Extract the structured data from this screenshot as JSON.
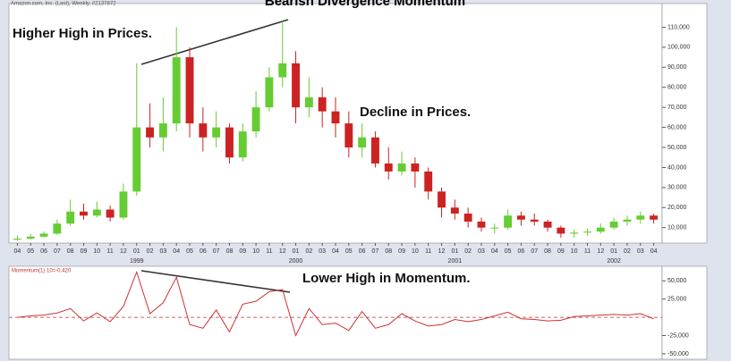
{
  "chart_data": [
    {
      "type": "candlestick",
      "title": "Bearish Divergence Momentum",
      "subtitle": "Amazon.com, Inc. (Last), Weekly, #2137872",
      "annotations": [
        "Higher High in Prices.",
        "Decline in Prices."
      ],
      "up_color": "#66cc33",
      "down_color": "#cc2222",
      "categories": [
        "04",
        "05",
        "06",
        "07",
        "08",
        "09",
        "10",
        "11",
        "12",
        "01",
        "02",
        "03",
        "04",
        "05",
        "06",
        "07",
        "08",
        "09",
        "10",
        "11",
        "12",
        "01",
        "02",
        "03",
        "04",
        "05",
        "06",
        "07",
        "08",
        "09",
        "10",
        "11",
        "12",
        "01",
        "02",
        "03",
        "04",
        "05",
        "06",
        "07",
        "08",
        "09",
        "10",
        "11",
        "12",
        "01",
        "02",
        "03",
        "04"
      ],
      "years": [
        "1999",
        "2000",
        "2001",
        "2002"
      ],
      "open": [
        4000,
        4500,
        5500,
        7000,
        12000,
        18000,
        16000,
        19000,
        15000,
        28000,
        60000,
        55000,
        62000,
        95000,
        62000,
        55000,
        60000,
        45000,
        58000,
        70000,
        85000,
        92000,
        70000,
        75000,
        68000,
        62000,
        50000,
        55000,
        42000,
        38000,
        42000,
        38000,
        28000,
        20000,
        17000,
        13000,
        10000,
        10000,
        16000,
        14000,
        13000,
        10000,
        7000,
        7500,
        8000,
        10000,
        13000,
        14000,
        16000
      ],
      "high": [
        6000,
        7000,
        8000,
        14000,
        24000,
        22000,
        23000,
        21000,
        32000,
        92000,
        72000,
        75000,
        110000,
        100000,
        70000,
        68000,
        62000,
        62000,
        78000,
        90000,
        113000,
        98000,
        85000,
        80000,
        75000,
        68000,
        62000,
        58000,
        50000,
        48000,
        45000,
        40000,
        30000,
        24000,
        20000,
        15000,
        12000,
        19000,
        18000,
        17000,
        14000,
        11000,
        9000,
        9500,
        12000,
        15000,
        16000,
        18000,
        17000
      ],
      "low": [
        3500,
        4000,
        5000,
        6500,
        11000,
        14000,
        15000,
        13000,
        14000,
        26000,
        50000,
        48000,
        58000,
        55000,
        48000,
        50000,
        42000,
        43000,
        55000,
        68000,
        80000,
        62000,
        65000,
        60000,
        55000,
        45000,
        45000,
        40000,
        34000,
        36000,
        30000,
        24000,
        15000,
        14000,
        10000,
        8000,
        7000,
        9000,
        11000,
        11000,
        8000,
        5000,
        5000,
        6000,
        7000,
        9000,
        11000,
        12000,
        12000
      ],
      "close": [
        4500,
        5500,
        7000,
        12000,
        18000,
        16000,
        19000,
        15000,
        28000,
        60000,
        55000,
        62000,
        95000,
        62000,
        55000,
        60000,
        45000,
        58000,
        70000,
        85000,
        92000,
        70000,
        75000,
        68000,
        62000,
        50000,
        55000,
        42000,
        38000,
        42000,
        38000,
        28000,
        20000,
        17000,
        13000,
        10000,
        10000,
        16000,
        14000,
        13000,
        10000,
        7000,
        7500,
        8000,
        10000,
        13000,
        14000,
        16000,
        14000
      ],
      "ylim": [
        2300,
        120000
      ],
      "yticks": [
        {
          "value": 10000,
          "label": "10,000"
        },
        {
          "value": 20000,
          "label": "20,000"
        },
        {
          "value": 30000,
          "label": "30,000"
        },
        {
          "value": 40000,
          "label": "40,000"
        },
        {
          "value": 50000,
          "label": "50,000"
        },
        {
          "value": 60000,
          "label": "60,000"
        },
        {
          "value": 70000,
          "label": "70,000"
        },
        {
          "value": 80000,
          "label": "80,000"
        },
        {
          "value": 90000,
          "label": "90,000"
        },
        {
          "value": 100000,
          "label": "100,000"
        },
        {
          "value": 110000,
          "label": "110,000"
        }
      ]
    },
    {
      "type": "line",
      "title": "Momentum(1) 10=-0.420",
      "annotations": [
        "Lower High in Momentum."
      ],
      "color": "#d03030",
      "values": [
        0,
        2000,
        3000,
        6000,
        12000,
        -5000,
        6000,
        -6000,
        15000,
        62000,
        5000,
        20000,
        55000,
        -10000,
        -15000,
        10000,
        -20000,
        18000,
        22000,
        35000,
        38000,
        -25000,
        12000,
        -10000,
        -8000,
        -18000,
        8000,
        -15000,
        -10000,
        5000,
        -5000,
        -12000,
        -10000,
        -3000,
        -6000,
        -3000,
        2000,
        7000,
        -2000,
        -3000,
        -5000,
        -4000,
        1000,
        2000,
        3000,
        4000,
        3000,
        5000,
        -2000
      ],
      "ylim": [
        -55000,
        67500
      ],
      "yticks": [
        {
          "value": -50000,
          "label": "-50,000"
        },
        {
          "value": -25000,
          "label": "-25,000"
        },
        {
          "value": 25000,
          "label": "25,000"
        },
        {
          "value": 50000,
          "label": "50,000"
        }
      ]
    }
  ]
}
